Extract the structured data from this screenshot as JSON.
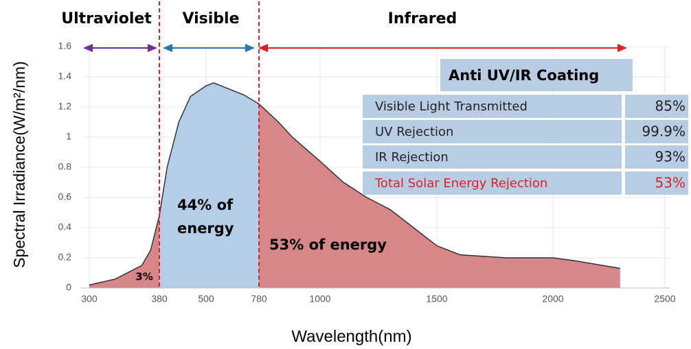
{
  "chart_data": {
    "type": "area",
    "bands": [
      {
        "label": "Ultraviolet",
        "color": "#7030a0"
      },
      {
        "label": "Visible",
        "color": "#2e75b6"
      },
      {
        "label": "Infrared",
        "color": "#e02020"
      }
    ],
    "boundaries": [
      380,
      780
    ],
    "x": [
      300,
      330,
      360,
      370,
      380,
      400,
      430,
      460,
      500,
      540,
      600,
      700,
      780,
      850,
      900,
      1000,
      1100,
      1200,
      1300,
      1400,
      1500,
      1600,
      1800,
      2000,
      2100,
      2300
    ],
    "values": [
      0.02,
      0.06,
      0.15,
      0.25,
      0.48,
      0.8,
      1.1,
      1.27,
      1.34,
      1.36,
      1.33,
      1.28,
      1.22,
      1.1,
      1.0,
      0.84,
      0.7,
      0.6,
      0.52,
      0.4,
      0.28,
      0.22,
      0.2,
      0.2,
      0.18,
      0.13
    ],
    "region_colors": [
      "#d7868a",
      "#b4cde8",
      "#d7868a"
    ],
    "annotations": [
      "3%",
      [
        "44% of",
        "energy"
      ],
      "53% of energy"
    ],
    "xlabel": "Wavelength(nm)",
    "ylabel": "Spectral Irradiance(W/m²/nm)",
    "xticks": [
      300,
      380,
      500,
      780,
      1000,
      1500,
      2000,
      2500
    ],
    "ylim": [
      0,
      1.6
    ],
    "yticks": [
      0,
      0.2,
      0.4,
      0.6,
      0.8,
      1,
      1.2,
      1.4,
      1.6
    ],
    "grid": true,
    "table": {
      "title": "Anti UV/IR Coating",
      "rows": [
        [
          "Visible Light Transmitted",
          "85%"
        ],
        [
          "UV  Rejection",
          "99.9%"
        ],
        [
          "IR Rejection",
          "93%"
        ],
        [
          "Total Solar   Energy   Rejection",
          "53%"
        ]
      ],
      "highlight_color": "#e02020"
    }
  }
}
